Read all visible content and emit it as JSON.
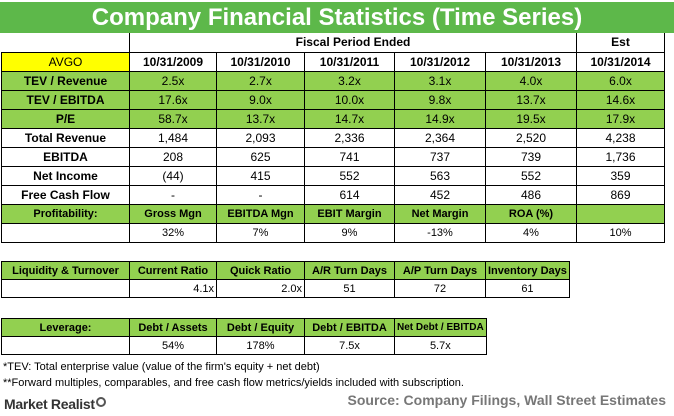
{
  "title": "Company Financial Statistics (Time Series)",
  "ticker": "AVGO",
  "fiscal_header": "Fiscal Period Ended",
  "est_header": "Est",
  "periods": [
    "10/31/2009",
    "10/31/2010",
    "10/31/2011",
    "10/31/2012",
    "10/31/2013",
    "10/31/2014"
  ],
  "multiples": [
    {
      "label": "TEV / Revenue",
      "values": [
        "2.5x",
        "2.7x",
        "3.2x",
        "3.1x",
        "4.0x",
        "6.0x"
      ]
    },
    {
      "label": "TEV / EBITDA",
      "values": [
        "17.6x",
        "9.0x",
        "10.0x",
        "9.8x",
        "13.7x",
        "14.6x"
      ]
    },
    {
      "label": "P/E",
      "values": [
        "58.7x",
        "13.7x",
        "14.7x",
        "14.9x",
        "19.5x",
        "17.9x"
      ]
    }
  ],
  "financials": [
    {
      "label": "Total Revenue",
      "values": [
        "1,484",
        "2,093",
        "2,336",
        "2,364",
        "2,520",
        "4,238"
      ]
    },
    {
      "label": "EBITDA",
      "values": [
        "208",
        "625",
        "741",
        "737",
        "739",
        "1,736"
      ]
    },
    {
      "label": "Net Income",
      "values": [
        "(44)",
        "415",
        "552",
        "563",
        "552",
        "359"
      ]
    },
    {
      "label": "Free Cash Flow",
      "values": [
        "-",
        "-",
        "614",
        "452",
        "486",
        "869"
      ]
    }
  ],
  "profitability": {
    "label": "Profitability:",
    "headers": [
      "Gross Mgn",
      "EBITDA Mgn",
      "EBIT Margin",
      "Net Margin",
      "ROA (%)",
      ""
    ],
    "values": [
      "32%",
      "7%",
      "9%",
      "-13%",
      "4%",
      "10%"
    ]
  },
  "liquidity": {
    "label": "Liquidity & Turnover",
    "headers": [
      "Current Ratio",
      "Quick Ratio",
      "A/R Turn Days",
      "A/P Turn Days",
      "Inventory Days"
    ],
    "values": [
      "4.1x",
      "2.0x",
      "51",
      "72",
      "61"
    ]
  },
  "leverage": {
    "label": "Leverage:",
    "headers": [
      "Debt / Assets",
      "Debt / Equity",
      "Debt / EBITDA",
      "Net Debt / EBITDA"
    ],
    "values": [
      "54%",
      "178%",
      "7.5x",
      "5.7x"
    ]
  },
  "notes": [
    "*TEV: Total enterprise value (value of the firm's equity + net debt)",
    "**Forward multiples, comparables, and free cash flow metrics/yields included with subscription."
  ],
  "logo_text": "Market Realist",
  "source": "Source: Company Filings, Wall Street Estimates"
}
